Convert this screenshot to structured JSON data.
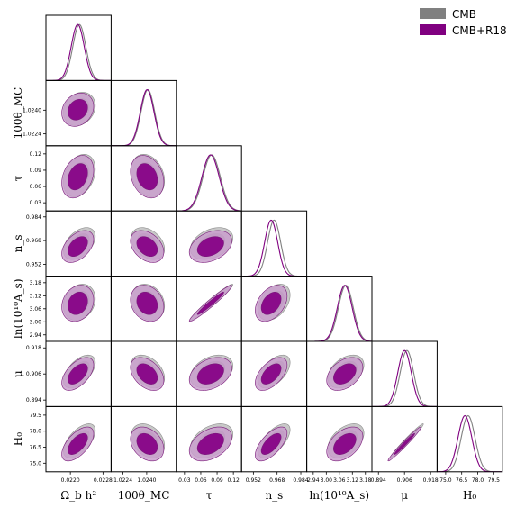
{
  "chart_data": {
    "type": "corner",
    "title": "",
    "legend": {
      "placement": "top-right",
      "entries": [
        {
          "label": "CMB",
          "color": "#808080"
        },
        {
          "label": "CMB+R18",
          "color": "#800080"
        }
      ]
    },
    "parameters": [
      {
        "label": "Ω_b h²",
        "range": [
          0.0214,
          0.023
        ],
        "ticks": [
          "0.0220",
          "0.0228"
        ],
        "tick_values": [
          0.022,
          0.0228
        ]
      },
      {
        "label": "100θ_MC",
        "range": [
          1.0216,
          1.026
        ],
        "ticks": [
          "1.0224",
          "1.0240"
        ],
        "tick_values": [
          1.0224,
          1.024
        ]
      },
      {
        "label": "τ",
        "range": [
          0.015,
          0.135
        ],
        "ticks": [
          "0.03",
          "0.06",
          "0.09",
          "0.12"
        ],
        "tick_values": [
          0.03,
          0.06,
          0.09,
          0.12
        ]
      },
      {
        "label": "n_s",
        "range": [
          0.944,
          0.988
        ],
        "ticks": [
          "0.952",
          "0.968",
          "0.984"
        ],
        "tick_values": [
          0.952,
          0.968,
          0.984
        ]
      },
      {
        "label": "ln(10¹⁰A_s)",
        "range": [
          2.91,
          3.21
        ],
        "ticks": [
          "2.94",
          "3.00",
          "3.06",
          "3.12",
          "3.18"
        ],
        "tick_values": [
          2.94,
          3.0,
          3.06,
          3.12,
          3.18
        ]
      },
      {
        "label": "μ",
        "range": [
          0.891,
          0.921
        ],
        "ticks": [
          "0.894",
          "0.906",
          "0.918"
        ],
        "tick_values": [
          0.894,
          0.906,
          0.918
        ]
      },
      {
        "label": "H₀",
        "range": [
          74.2,
          80.3
        ],
        "ticks": [
          "75.0",
          "76.5",
          "78.0",
          "79.5"
        ],
        "tick_values": [
          75.0,
          76.5,
          78.0,
          79.5
        ]
      }
    ],
    "series": [
      {
        "name": "CMB",
        "color": "#808080",
        "mean": [
          0.02222,
          1.02408,
          0.08,
          0.966,
          3.09,
          0.9071,
          77.1
        ],
        "sigma": [
          0.00016,
          0.00046,
          0.016,
          0.0044,
          0.034,
          0.0031,
          0.65
        ]
      },
      {
        "name": "CMB+R18",
        "color": "#800080",
        "mean": [
          0.02218,
          1.02403,
          0.078,
          0.964,
          3.085,
          0.906,
          76.8
        ],
        "sigma": [
          0.00016,
          0.00046,
          0.016,
          0.0044,
          0.034,
          0.0031,
          0.65
        ]
      }
    ],
    "correlations": [
      {
        "i": 1,
        "j": 0,
        "rho": 0.2
      },
      {
        "i": 2,
        "j": 0,
        "rho": 0.3
      },
      {
        "i": 2,
        "j": 1,
        "rho": -0.25
      },
      {
        "i": 3,
        "j": 0,
        "rho": 0.45
      },
      {
        "i": 3,
        "j": 1,
        "rho": -0.35
      },
      {
        "i": 3,
        "j": 2,
        "rho": 0.35
      },
      {
        "i": 4,
        "j": 0,
        "rho": 0.2
      },
      {
        "i": 4,
        "j": 1,
        "rho": -0.2
      },
      {
        "i": 4,
        "j": 2,
        "rho": 0.97
      },
      {
        "i": 4,
        "j": 3,
        "rho": 0.4
      },
      {
        "i": 5,
        "j": 0,
        "rho": 0.55
      },
      {
        "i": 5,
        "j": 1,
        "rho": -0.4
      },
      {
        "i": 5,
        "j": 2,
        "rho": 0.35
      },
      {
        "i": 5,
        "j": 3,
        "rho": 0.55
      },
      {
        "i": 5,
        "j": 4,
        "rho": 0.4
      },
      {
        "i": 6,
        "j": 0,
        "rho": 0.6
      },
      {
        "i": 6,
        "j": 1,
        "rho": -0.3
      },
      {
        "i": 6,
        "j": 2,
        "rho": 0.4
      },
      {
        "i": 6,
        "j": 3,
        "rho": 0.65
      },
      {
        "i": 6,
        "j": 4,
        "rho": 0.45
      },
      {
        "i": 6,
        "j": 5,
        "rho": 0.98
      }
    ],
    "contour_levels": [
      "68%",
      "95%"
    ]
  }
}
